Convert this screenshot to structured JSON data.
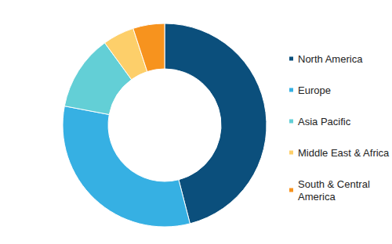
{
  "chart_data": {
    "type": "pie",
    "categories": [
      "North America",
      "Europe",
      "Asia Pacific",
      "Middle East & Africa",
      "South & Central America"
    ],
    "values": [
      46,
      32,
      12,
      5,
      5
    ],
    "colors": [
      "#0b4f7c",
      "#36b0e3",
      "#63cfd6",
      "#fdcf6a",
      "#f7931e"
    ],
    "legend": "right"
  }
}
